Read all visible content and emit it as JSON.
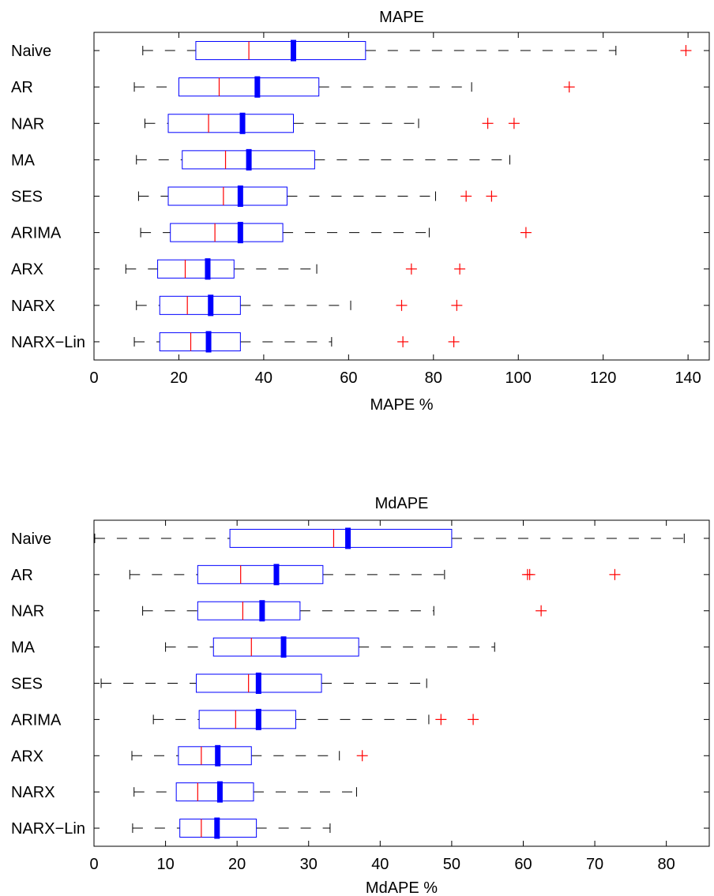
{
  "chart_data": [
    {
      "type": "boxplot",
      "title": "MAPE",
      "xlabel": "MAPE %",
      "ylabel": "",
      "xlim": [
        0,
        145
      ],
      "xticks": [
        0,
        20,
        40,
        60,
        80,
        100,
        120,
        140
      ],
      "tick_labels": [
        "0",
        "20",
        "40",
        "60",
        "80",
        "100",
        "120",
        "140"
      ],
      "grid": false,
      "categories": [
        "Naive",
        "AR",
        "NAR",
        "MA",
        "SES",
        "ARIMA",
        "ARX",
        "NARX",
        "NARX−Lin"
      ],
      "series": [
        {
          "label": "Naive",
          "whisker_low": 11.5,
          "q1": 24.0,
          "median": 36.5,
          "mean": 47.0,
          "q3": 64.0,
          "whisker_high": 123.0,
          "outliers": [
            139.5
          ]
        },
        {
          "label": "AR",
          "whisker_low": 9.5,
          "q1": 20.0,
          "median": 29.5,
          "mean": 38.5,
          "q3": 53.0,
          "whisker_high": 89.0,
          "outliers": [
            112.0
          ]
        },
        {
          "label": "NAR",
          "whisker_low": 12.0,
          "q1": 17.5,
          "median": 27.0,
          "mean": 35.0,
          "q3": 47.0,
          "whisker_high": 76.5,
          "outliers": [
            92.8,
            99.0
          ]
        },
        {
          "label": "MA",
          "whisker_low": 10.0,
          "q1": 20.8,
          "median": 31.0,
          "mean": 36.5,
          "q3": 52.0,
          "whisker_high": 98.0,
          "outliers": []
        },
        {
          "label": "SES",
          "whisker_low": 10.5,
          "q1": 17.5,
          "median": 30.5,
          "mean": 34.5,
          "q3": 45.5,
          "whisker_high": 80.5,
          "outliers": [
            87.7,
            93.7
          ]
        },
        {
          "label": "ARIMA",
          "whisker_low": 11.0,
          "q1": 18.0,
          "median": 28.5,
          "mean": 34.5,
          "q3": 44.5,
          "whisker_high": 79.0,
          "outliers": [
            101.8
          ]
        },
        {
          "label": "ARX",
          "whisker_low": 7.5,
          "q1": 15.0,
          "median": 21.5,
          "mean": 26.8,
          "q3": 33.0,
          "whisker_high": 52.5,
          "outliers": [
            74.8,
            86.2
          ]
        },
        {
          "label": "NARX",
          "whisker_low": 10.0,
          "q1": 15.5,
          "median": 22.0,
          "mean": 27.5,
          "q3": 34.5,
          "whisker_high": 60.5,
          "outliers": [
            72.5,
            85.5
          ]
        },
        {
          "label": "NARX−Lin",
          "whisker_low": 9.5,
          "q1": 15.5,
          "median": 22.8,
          "mean": 27.0,
          "q3": 34.5,
          "whisker_high": 56.0,
          "outliers": [
            72.8,
            84.8
          ]
        }
      ]
    },
    {
      "type": "boxplot",
      "title": "MdAPE",
      "xlabel": "MdAPE %",
      "ylabel": "",
      "xlim": [
        0,
        86
      ],
      "xticks": [
        0,
        10,
        20,
        30,
        40,
        50,
        60,
        70,
        80
      ],
      "tick_labels": [
        "0",
        "10",
        "20",
        "30",
        "40",
        "50",
        "60",
        "70",
        "80"
      ],
      "grid": false,
      "categories": [
        "Naive",
        "AR",
        "NAR",
        "MA",
        "SES",
        "ARIMA",
        "ARX",
        "NARX",
        "NARX−Lin"
      ],
      "series": [
        {
          "label": "Naive",
          "whisker_low": 0.1,
          "q1": 19.0,
          "median": 33.5,
          "mean": 35.5,
          "q3": 50.0,
          "whisker_high": 82.5,
          "outliers": []
        },
        {
          "label": "AR",
          "whisker_low": 5.0,
          "q1": 14.5,
          "median": 20.5,
          "mean": 25.5,
          "q3": 32.0,
          "whisker_high": 49.0,
          "outliers": [
            60.6,
            60.9,
            72.8
          ]
        },
        {
          "label": "NAR",
          "whisker_low": 6.8,
          "q1": 14.5,
          "median": 20.8,
          "mean": 23.5,
          "q3": 28.8,
          "whisker_high": 47.5,
          "outliers": [
            62.5
          ]
        },
        {
          "label": "MA",
          "whisker_low": 10.0,
          "q1": 16.7,
          "median": 22.0,
          "mean": 26.5,
          "q3": 37.0,
          "whisker_high": 56.0,
          "outliers": []
        },
        {
          "label": "SES",
          "whisker_low": 1.0,
          "q1": 14.3,
          "median": 21.6,
          "mean": 23.0,
          "q3": 31.8,
          "whisker_high": 46.5,
          "outliers": []
        },
        {
          "label": "ARIMA",
          "whisker_low": 8.3,
          "q1": 14.7,
          "median": 19.8,
          "mean": 23.0,
          "q3": 28.2,
          "whisker_high": 46.8,
          "outliers": [
            48.5,
            53.0
          ]
        },
        {
          "label": "ARX",
          "whisker_low": 5.3,
          "q1": 11.8,
          "median": 15.0,
          "mean": 17.3,
          "q3": 22.0,
          "whisker_high": 34.3,
          "outliers": [
            37.5
          ]
        },
        {
          "label": "NARX",
          "whisker_low": 5.6,
          "q1": 11.5,
          "median": 14.5,
          "mean": 17.6,
          "q3": 22.3,
          "whisker_high": 36.7,
          "outliers": []
        },
        {
          "label": "NARX−Lin",
          "whisker_low": 5.4,
          "q1": 12.0,
          "median": 15.0,
          "mean": 17.2,
          "q3": 22.7,
          "whisker_high": 33.0,
          "outliers": []
        }
      ]
    }
  ],
  "style": {
    "box_color": "#0000ff",
    "median_color": "#ff0000",
    "mean_color": "#0000ff",
    "whisker_color": "#000000",
    "outlier_color": "#ff0000",
    "axis_color": "#000000"
  }
}
